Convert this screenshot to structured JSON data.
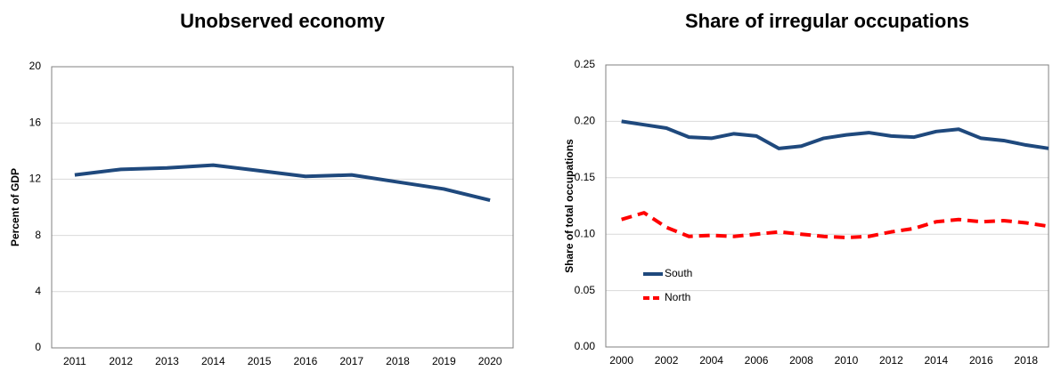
{
  "chart_data": [
    {
      "type": "line",
      "title": "Unobserved economy",
      "y_label": "Percent of GDP",
      "categories": [
        "2011",
        "2012",
        "2013",
        "2014",
        "2015",
        "2016",
        "2017",
        "2018",
        "2019",
        "2020"
      ],
      "values": [
        12.3,
        12.7,
        12.8,
        13.0,
        12.6,
        12.2,
        12.3,
        11.8,
        11.3,
        10.5
      ],
      "color": "#1f497d",
      "ylim": [
        0,
        20
      ],
      "yticks": [
        0,
        4,
        8,
        12,
        16,
        20
      ],
      "grid": true
    },
    {
      "type": "line",
      "title": "Share of irregular occupations",
      "y_label": "Share of total occupations",
      "x": [
        2000,
        2001,
        2002,
        2003,
        2004,
        2005,
        2006,
        2007,
        2008,
        2009,
        2010,
        2011,
        2012,
        2013,
        2014,
        2015,
        2016,
        2017,
        2018,
        2019
      ],
      "xlim": [
        1999.3,
        2019
      ],
      "xticks": [
        2000,
        2002,
        2004,
        2006,
        2008,
        2010,
        2012,
        2014,
        2016,
        2018
      ],
      "series": [
        {
          "name": "South",
          "color": "#1f497d",
          "style": "solid",
          "values": [
            0.2,
            0.197,
            0.194,
            0.186,
            0.185,
            0.189,
            0.187,
            0.176,
            0.178,
            0.185,
            0.188,
            0.19,
            0.187,
            0.186,
            0.191,
            0.193,
            0.185,
            0.183,
            0.179,
            0.176
          ]
        },
        {
          "name": "North",
          "color": "#ff0000",
          "style": "dashed",
          "values": [
            0.113,
            0.119,
            0.106,
            0.098,
            0.099,
            0.098,
            0.1,
            0.102,
            0.1,
            0.098,
            0.097,
            0.098,
            0.102,
            0.105,
            0.111,
            0.113,
            0.111,
            0.112,
            0.11,
            0.107
          ]
        }
      ],
      "ylim": [
        0,
        0.25
      ],
      "yticks": [
        {
          "value": 0,
          "label": "0.00"
        },
        {
          "value": 0.05,
          "label": "0.05"
        },
        {
          "value": 0.1,
          "label": "0.10"
        },
        {
          "value": 0.15,
          "label": "0.15"
        },
        {
          "value": 0.2,
          "label": "0.20"
        },
        {
          "value": 0.25,
          "label": "0.25"
        }
      ],
      "grid": true,
      "legend": "lower-left"
    }
  ]
}
